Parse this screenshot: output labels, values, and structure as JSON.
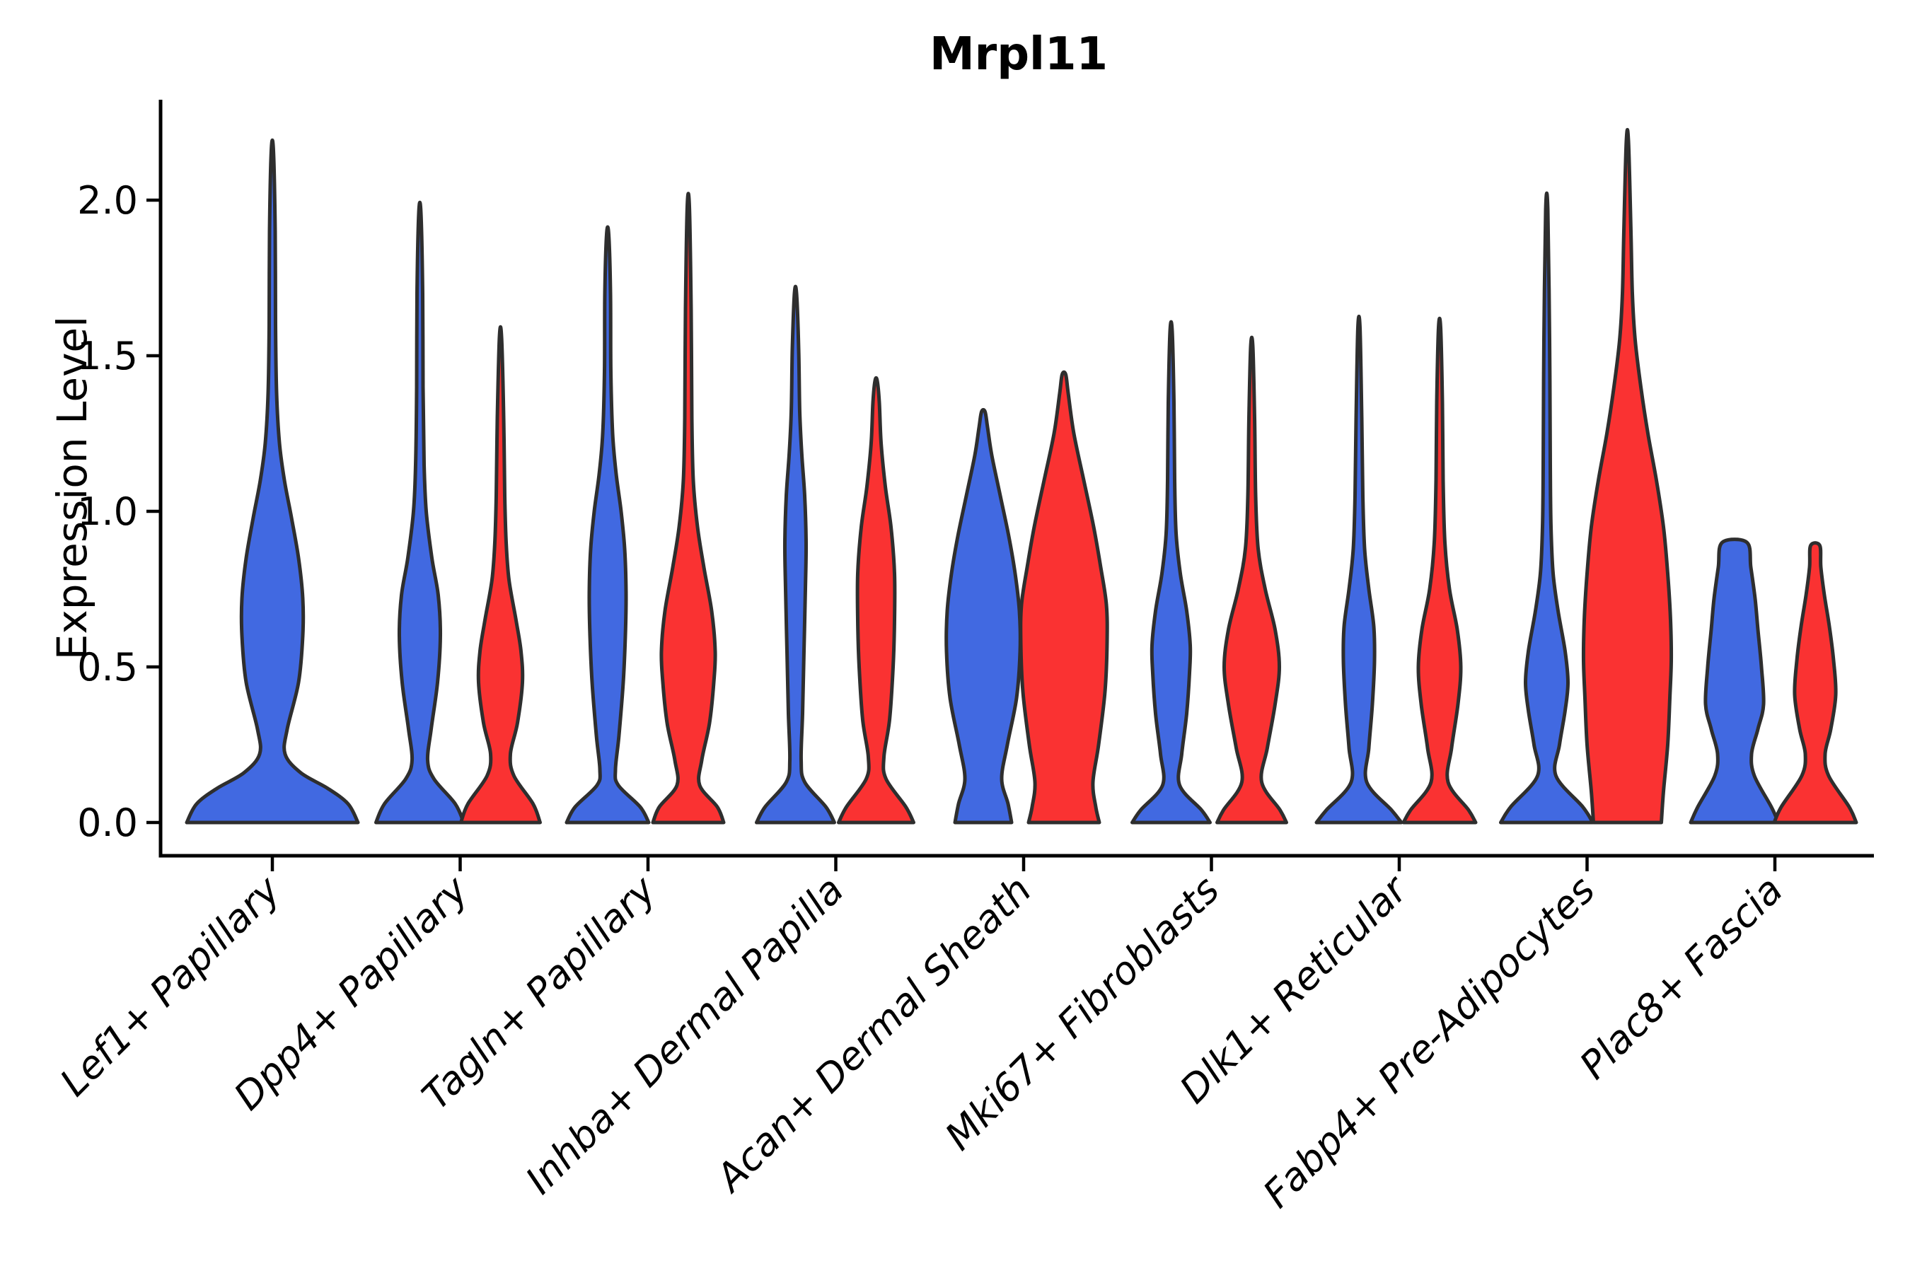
{
  "title": "Mrpl11",
  "y_axis": {
    "label": "Expression Level",
    "tick_labels": [
      "0.0",
      "0.5",
      "1.0",
      "1.5",
      "2.0"
    ],
    "tick_values": [
      0.0,
      0.5,
      1.0,
      1.5,
      2.0
    ]
  },
  "x_axis": {
    "categories": [
      "Lef1+ Papillary",
      "Dpp4+ Papillary",
      "Tagln+ Papillary",
      "Inhba+ Dermal Papilla",
      "Acan+ Dermal Sheath",
      "Mki67+ Fibroblasts",
      "Dlk1+ Reticular",
      "Fabp4+ Pre-Adipocytes",
      "Plac8+ Fascia"
    ]
  },
  "colors": {
    "blue_group": "#4169E1",
    "red_group": "#FA3232",
    "violin_edge": "#2e2e2e",
    "axis": "#000000"
  },
  "chart_data": {
    "type": "violin",
    "title": "Mrpl11",
    "xlabel": "",
    "ylabel": "Expression Level",
    "ylim": [
      -0.1,
      2.32
    ],
    "grid": false,
    "legend_position": "none",
    "categories": [
      "Lef1+ Papillary",
      "Dpp4+ Papillary",
      "Tagln+ Papillary",
      "Inhba+ Dermal Papilla",
      "Acan+ Dermal Sheath",
      "Mki67+ Fibroblasts",
      "Dlk1+ Reticular",
      "Fabp4+ Pre-Adipocytes",
      "Plac8+ Fascia"
    ],
    "groups": [
      {
        "id": "blue",
        "color": "#4169E1"
      },
      {
        "id": "red",
        "color": "#FA3232"
      }
    ],
    "note": "profile is a list of [expression_value, kde_halfwidth_px] pairs read from the rendered violins, bottom to top",
    "violins": [
      {
        "category": "Lef1+ Papillary",
        "group": "blue",
        "position": "center",
        "color": "#4169E1",
        "max_expression": 2.16,
        "profile": [
          [
            0,
            121
          ],
          [
            0.06,
            107
          ],
          [
            0.11,
            78
          ],
          [
            0.16,
            40
          ],
          [
            0.22,
            18
          ],
          [
            0.3,
            21
          ],
          [
            0.45,
            37
          ],
          [
            0.6,
            43
          ],
          [
            0.72,
            43
          ],
          [
            0.85,
            37
          ],
          [
            0.98,
            27
          ],
          [
            1.1,
            17
          ],
          [
            1.22,
            10
          ],
          [
            1.38,
            6
          ],
          [
            1.6,
            4.5
          ],
          [
            1.9,
            4
          ],
          [
            2.16,
            1.5
          ]
        ]
      },
      {
        "category": "Dpp4+ Papillary",
        "group": "blue",
        "position": "left",
        "color": "#4169E1",
        "max_expression": 1.96,
        "profile": [
          [
            0,
            62
          ],
          [
            0.06,
            50
          ],
          [
            0.14,
            20
          ],
          [
            0.2,
            11
          ],
          [
            0.3,
            16
          ],
          [
            0.45,
            25
          ],
          [
            0.6,
            29
          ],
          [
            0.73,
            26
          ],
          [
            0.85,
            17
          ],
          [
            1.0,
            9
          ],
          [
            1.15,
            6
          ],
          [
            1.4,
            4.5
          ],
          [
            1.7,
            4
          ],
          [
            1.96,
            1.5
          ]
        ]
      },
      {
        "category": "Dpp4+ Papillary",
        "group": "red",
        "position": "right",
        "color": "#FA3232",
        "max_expression": 1.56,
        "profile": [
          [
            0,
            56
          ],
          [
            0.06,
            46
          ],
          [
            0.15,
            19
          ],
          [
            0.22,
            14
          ],
          [
            0.32,
            24
          ],
          [
            0.45,
            31
          ],
          [
            0.55,
            29
          ],
          [
            0.65,
            22
          ],
          [
            0.78,
            12
          ],
          [
            0.9,
            8
          ],
          [
            1.05,
            6
          ],
          [
            1.3,
            4.5
          ],
          [
            1.56,
            1.5
          ]
        ]
      },
      {
        "category": "Tagln+ Papillary",
        "group": "blue",
        "position": "left",
        "color": "#4169E1",
        "max_expression": 1.89,
        "profile": [
          [
            0,
            58
          ],
          [
            0.05,
            46
          ],
          [
            0.12,
            15
          ],
          [
            0.17,
            11
          ],
          [
            0.28,
            16
          ],
          [
            0.45,
            22
          ],
          [
            0.6,
            25
          ],
          [
            0.74,
            26
          ],
          [
            0.88,
            24
          ],
          [
            1.0,
            19
          ],
          [
            1.12,
            12
          ],
          [
            1.25,
            7
          ],
          [
            1.45,
            4.5
          ],
          [
            1.7,
            4
          ],
          [
            1.89,
            1.5
          ]
        ]
      },
      {
        "category": "Tagln+ Papillary",
        "group": "red",
        "position": "right",
        "color": "#FA3232",
        "max_expression": 1.98,
        "profile": [
          [
            0,
            50
          ],
          [
            0.05,
            41
          ],
          [
            0.12,
            16
          ],
          [
            0.2,
            19
          ],
          [
            0.32,
            30
          ],
          [
            0.45,
            36
          ],
          [
            0.55,
            38
          ],
          [
            0.68,
            33
          ],
          [
            0.82,
            22
          ],
          [
            0.95,
            13
          ],
          [
            1.1,
            7
          ],
          [
            1.3,
            5
          ],
          [
            1.65,
            4
          ],
          [
            1.98,
            1.5
          ]
        ]
      },
      {
        "category": "Inhba+ Dermal Papilla",
        "group": "blue",
        "position": "left",
        "color": "#4169E1",
        "max_expression": 1.7,
        "profile": [
          [
            0,
            55
          ],
          [
            0.05,
            43
          ],
          [
            0.13,
            13
          ],
          [
            0.2,
            8
          ],
          [
            0.35,
            10
          ],
          [
            0.55,
            12
          ],
          [
            0.75,
            14
          ],
          [
            0.9,
            15
          ],
          [
            1.05,
            13
          ],
          [
            1.18,
            9
          ],
          [
            1.32,
            6
          ],
          [
            1.52,
            4.5
          ],
          [
            1.7,
            1.5
          ]
        ]
      },
      {
        "category": "Inhba+ Dermal Papilla",
        "group": "red",
        "position": "right",
        "color": "#FA3232",
        "max_expression": 1.42,
        "profile": [
          [
            0,
            53
          ],
          [
            0.05,
            42
          ],
          [
            0.14,
            14
          ],
          [
            0.21,
            11
          ],
          [
            0.33,
            19
          ],
          [
            0.5,
            24
          ],
          [
            0.65,
            26
          ],
          [
            0.8,
            26
          ],
          [
            0.95,
            21
          ],
          [
            1.08,
            13
          ],
          [
            1.22,
            7
          ],
          [
            1.35,
            4.5
          ],
          [
            1.42,
            1.5
          ]
        ]
      },
      {
        "category": "Acan+ Dermal Sheath",
        "group": "blue",
        "position": "left",
        "color": "#4169E1",
        "max_expression": 1.32,
        "profile": [
          [
            0,
            40
          ],
          [
            0.06,
            35
          ],
          [
            0.14,
            26
          ],
          [
            0.25,
            34
          ],
          [
            0.4,
            47
          ],
          [
            0.55,
            52
          ],
          [
            0.68,
            51
          ],
          [
            0.8,
            45
          ],
          [
            0.92,
            36
          ],
          [
            1.05,
            24
          ],
          [
            1.18,
            12
          ],
          [
            1.27,
            6
          ],
          [
            1.32,
            2.5
          ]
        ]
      },
      {
        "category": "Acan+ Dermal Sheath",
        "group": "red",
        "position": "right",
        "color": "#FA3232",
        "max_expression": 1.44,
        "profile": [
          [
            0,
            50
          ],
          [
            0.05,
            45
          ],
          [
            0.13,
            41
          ],
          [
            0.25,
            49
          ],
          [
            0.42,
            58
          ],
          [
            0.58,
            61
          ],
          [
            0.7,
            60
          ],
          [
            0.82,
            52
          ],
          [
            0.95,
            42
          ],
          [
            1.1,
            28
          ],
          [
            1.25,
            14
          ],
          [
            1.38,
            6
          ],
          [
            1.44,
            2.5
          ]
        ]
      },
      {
        "category": "Mki67+ Fibroblasts",
        "group": "blue",
        "position": "left",
        "color": "#4169E1",
        "max_expression": 1.58,
        "profile": [
          [
            0,
            55
          ],
          [
            0.04,
            43
          ],
          [
            0.12,
            12
          ],
          [
            0.22,
            15
          ],
          [
            0.35,
            22
          ],
          [
            0.48,
            26
          ],
          [
            0.57,
            27
          ],
          [
            0.68,
            22
          ],
          [
            0.8,
            13
          ],
          [
            0.93,
            7
          ],
          [
            1.1,
            5
          ],
          [
            1.35,
            4
          ],
          [
            1.58,
            1.5
          ]
        ]
      },
      {
        "category": "Mki67+ Fibroblasts",
        "group": "red",
        "position": "right",
        "color": "#FA3232",
        "max_expression": 1.53,
        "profile": [
          [
            0,
            49
          ],
          [
            0.04,
            40
          ],
          [
            0.13,
            14
          ],
          [
            0.24,
            22
          ],
          [
            0.38,
            33
          ],
          [
            0.5,
            39
          ],
          [
            0.62,
            33
          ],
          [
            0.75,
            19
          ],
          [
            0.88,
            9
          ],
          [
            1.05,
            5.5
          ],
          [
            1.3,
            4
          ],
          [
            1.53,
            1.5
          ]
        ]
      },
      {
        "category": "Dlk1+ Reticular",
        "group": "blue",
        "position": "left",
        "color": "#4169E1",
        "max_expression": 1.59,
        "profile": [
          [
            0,
            60
          ],
          [
            0.04,
            46
          ],
          [
            0.13,
            11
          ],
          [
            0.24,
            14
          ],
          [
            0.38,
            19
          ],
          [
            0.52,
            22
          ],
          [
            0.63,
            21
          ],
          [
            0.75,
            14
          ],
          [
            0.88,
            8
          ],
          [
            1.05,
            5.5
          ],
          [
            1.3,
            4
          ],
          [
            1.59,
            1.5
          ]
        ]
      },
      {
        "category": "Dlk1+ Reticular",
        "group": "red",
        "position": "right",
        "color": "#FA3232",
        "max_expression": 1.59,
        "profile": [
          [
            0,
            51
          ],
          [
            0.04,
            41
          ],
          [
            0.13,
            12
          ],
          [
            0.24,
            17
          ],
          [
            0.38,
            26
          ],
          [
            0.5,
            30
          ],
          [
            0.62,
            25
          ],
          [
            0.75,
            14
          ],
          [
            0.9,
            7.5
          ],
          [
            1.1,
            5
          ],
          [
            1.35,
            4
          ],
          [
            1.59,
            1.5
          ]
        ]
      },
      {
        "category": "Fabp4+ Pre-Adipocytes",
        "group": "blue",
        "position": "left",
        "color": "#4169E1",
        "max_expression": 1.97,
        "profile": [
          [
            0,
            65
          ],
          [
            0.05,
            51
          ],
          [
            0.15,
            13
          ],
          [
            0.25,
            18
          ],
          [
            0.36,
            26
          ],
          [
            0.45,
            30
          ],
          [
            0.55,
            26
          ],
          [
            0.68,
            16
          ],
          [
            0.8,
            9
          ],
          [
            0.95,
            6
          ],
          [
            1.15,
            5
          ],
          [
            1.55,
            4
          ],
          [
            1.97,
            1.5
          ]
        ]
      },
      {
        "category": "Fabp4+ Pre-Adipocytes",
        "group": "red",
        "position": "right",
        "color": "#FA3232",
        "max_expression": 2.19,
        "profile": [
          [
            0,
            48
          ],
          [
            0.1,
            51
          ],
          [
            0.25,
            57
          ],
          [
            0.4,
            60
          ],
          [
            0.52,
            62
          ],
          [
            0.65,
            61
          ],
          [
            0.8,
            57
          ],
          [
            0.95,
            51
          ],
          [
            1.1,
            41
          ],
          [
            1.25,
            29
          ],
          [
            1.4,
            19
          ],
          [
            1.55,
            11
          ],
          [
            1.7,
            7
          ],
          [
            1.9,
            5
          ],
          [
            2.19,
            1.5
          ]
        ]
      },
      {
        "category": "Plac8+ Fascia",
        "group": "blue",
        "position": "left",
        "color": "#4169E1",
        "max_expression": 0.9,
        "profile": [
          [
            0,
            62
          ],
          [
            0.05,
            52
          ],
          [
            0.15,
            28
          ],
          [
            0.22,
            24
          ],
          [
            0.3,
            33
          ],
          [
            0.38,
            41
          ],
          [
            0.5,
            38
          ],
          [
            0.62,
            33
          ],
          [
            0.72,
            29
          ],
          [
            0.82,
            23
          ],
          [
            0.9,
            17.5
          ]
        ]
      },
      {
        "category": "Plac8+ Fascia",
        "group": "red",
        "position": "right",
        "color": "#FA3232",
        "max_expression": 0.89,
        "profile": [
          [
            0,
            58
          ],
          [
            0.05,
            48
          ],
          [
            0.15,
            19
          ],
          [
            0.22,
            14
          ],
          [
            0.3,
            22
          ],
          [
            0.41,
            29
          ],
          [
            0.52,
            26
          ],
          [
            0.63,
            20
          ],
          [
            0.73,
            13
          ],
          [
            0.82,
            8
          ],
          [
            0.89,
            6.5
          ]
        ]
      }
    ]
  }
}
